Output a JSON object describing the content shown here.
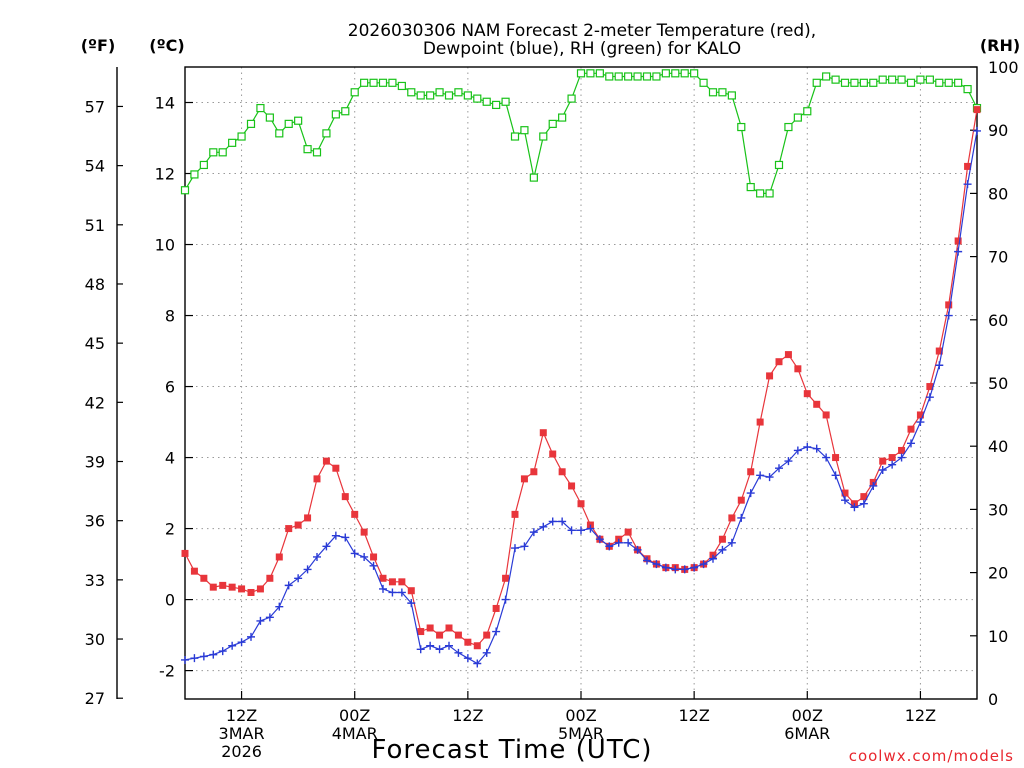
{
  "chart_data": {
    "type": "line",
    "title_lines": [
      "2026030306 NAM Forecast 2-meter Temperature (red),",
      "Dewpoint (blue), RH (green) for KALO"
    ],
    "xlabel": "Forecast Time (UTC)",
    "credit": "coolwx.com/models",
    "axis_headers": {
      "fahrenheit": "(ºF)",
      "celsius": "(ºC)",
      "rh": "(RH)"
    },
    "x_hours_range": [
      0,
      84
    ],
    "y_celsius_range": [
      -2.8,
      15
    ],
    "y_rh_range": [
      0,
      100
    ],
    "fahrenheit_ticks": [
      "27",
      "30",
      "33",
      "36",
      "39",
      "42",
      "45",
      "48",
      "51",
      "54",
      "57"
    ],
    "celsius_ticks": [
      "-2",
      "0",
      "2",
      "4",
      "6",
      "8",
      "10",
      "12",
      "14"
    ],
    "rh_ticks": [
      "0",
      "10",
      "20",
      "30",
      "40",
      "50",
      "60",
      "70",
      "80",
      "90",
      "100"
    ],
    "x_ticks": [
      {
        "hour": 6,
        "lines": [
          "12Z",
          "3MAR",
          "2026"
        ]
      },
      {
        "hour": 18,
        "lines": [
          "00Z",
          "4MAR"
        ]
      },
      {
        "hour": 30,
        "lines": [
          "12Z"
        ]
      },
      {
        "hour": 42,
        "lines": [
          "00Z",
          "5MAR"
        ]
      },
      {
        "hour": 54,
        "lines": [
          "12Z"
        ]
      },
      {
        "hour": 66,
        "lines": [
          "00Z",
          "6MAR"
        ]
      },
      {
        "hour": 78,
        "lines": [
          "12Z"
        ]
      }
    ],
    "series": [
      {
        "name": "Temperature",
        "unit": "C",
        "color": "#e8353b",
        "marker": "filled-square",
        "values": [
          1.3,
          0.8,
          0.6,
          0.35,
          0.4,
          0.35,
          0.3,
          0.2,
          0.3,
          0.6,
          1.2,
          2.0,
          2.1,
          2.3,
          3.4,
          3.9,
          3.7,
          2.9,
          2.4,
          1.9,
          1.2,
          0.6,
          0.5,
          0.5,
          0.25,
          -0.9,
          -0.8,
          -1.0,
          -0.8,
          -1.0,
          -1.2,
          -1.3,
          -1.0,
          -0.25,
          0.6,
          2.4,
          3.4,
          3.6,
          4.7,
          4.1,
          3.6,
          3.2,
          2.7,
          2.1,
          1.7,
          1.5,
          1.7,
          1.9,
          1.4,
          1.15,
          1.0,
          0.9,
          0.9,
          0.85,
          0.9,
          1.0,
          1.25,
          1.7,
          2.3,
          2.8,
          3.6,
          5.0,
          6.3,
          6.7,
          6.9,
          6.5,
          5.8,
          5.5,
          5.2,
          4.0,
          3.0,
          2.7,
          2.9,
          3.3,
          3.9,
          4.0,
          4.2,
          4.8,
          5.2,
          6.0,
          7.0,
          8.3,
          10.1,
          12.2,
          13.8
        ]
      },
      {
        "name": "Dewpoint",
        "unit": "C",
        "color": "#2a3bd6",
        "marker": "plus",
        "values": [
          -1.7,
          -1.65,
          -1.6,
          -1.55,
          -1.45,
          -1.3,
          -1.2,
          -1.05,
          -0.6,
          -0.5,
          -0.2,
          0.4,
          0.6,
          0.85,
          1.2,
          1.5,
          1.8,
          1.75,
          1.3,
          1.2,
          0.95,
          0.3,
          0.2,
          0.2,
          -0.1,
          -1.4,
          -1.3,
          -1.4,
          -1.3,
          -1.5,
          -1.65,
          -1.8,
          -1.5,
          -0.9,
          0.0,
          1.45,
          1.5,
          1.9,
          2.05,
          2.2,
          2.2,
          1.95,
          1.95,
          2.0,
          1.7,
          1.5,
          1.6,
          1.6,
          1.4,
          1.1,
          1.0,
          0.9,
          0.85,
          0.85,
          0.9,
          1.0,
          1.15,
          1.4,
          1.6,
          2.3,
          3.0,
          3.5,
          3.45,
          3.7,
          3.9,
          4.2,
          4.3,
          4.25,
          4.0,
          3.5,
          2.8,
          2.6,
          2.7,
          3.2,
          3.65,
          3.8,
          4.0,
          4.4,
          5.0,
          5.7,
          6.6,
          8.0,
          9.8,
          11.7,
          13.2
        ]
      },
      {
        "name": "RH",
        "unit": "%",
        "color": "#18c218",
        "marker": "open-square",
        "values": [
          80.5,
          83,
          84.5,
          86.5,
          86.5,
          88,
          89,
          91,
          93.5,
          92,
          89.5,
          91,
          91.5,
          87,
          86.5,
          89.5,
          92.5,
          93,
          96,
          97.5,
          97.5,
          97.5,
          97.5,
          97,
          96,
          95.5,
          95.5,
          96,
          95.5,
          96,
          95.5,
          95,
          94.5,
          94,
          94.5,
          89,
          90,
          82.5,
          89,
          91,
          92,
          95,
          99,
          99,
          99,
          98.5,
          98.5,
          98.5,
          98.5,
          98.5,
          98.5,
          99,
          99,
          99,
          99,
          97.5,
          96,
          96,
          95.5,
          90.5,
          81,
          80,
          80,
          84.5,
          90.5,
          92,
          93,
          97.5,
          98.5,
          98,
          97.5,
          97.5,
          97.5,
          97.5,
          98,
          98,
          98,
          97.5,
          98,
          98,
          97.5,
          97.5,
          97.5,
          96.5,
          93.5
        ]
      }
    ]
  }
}
